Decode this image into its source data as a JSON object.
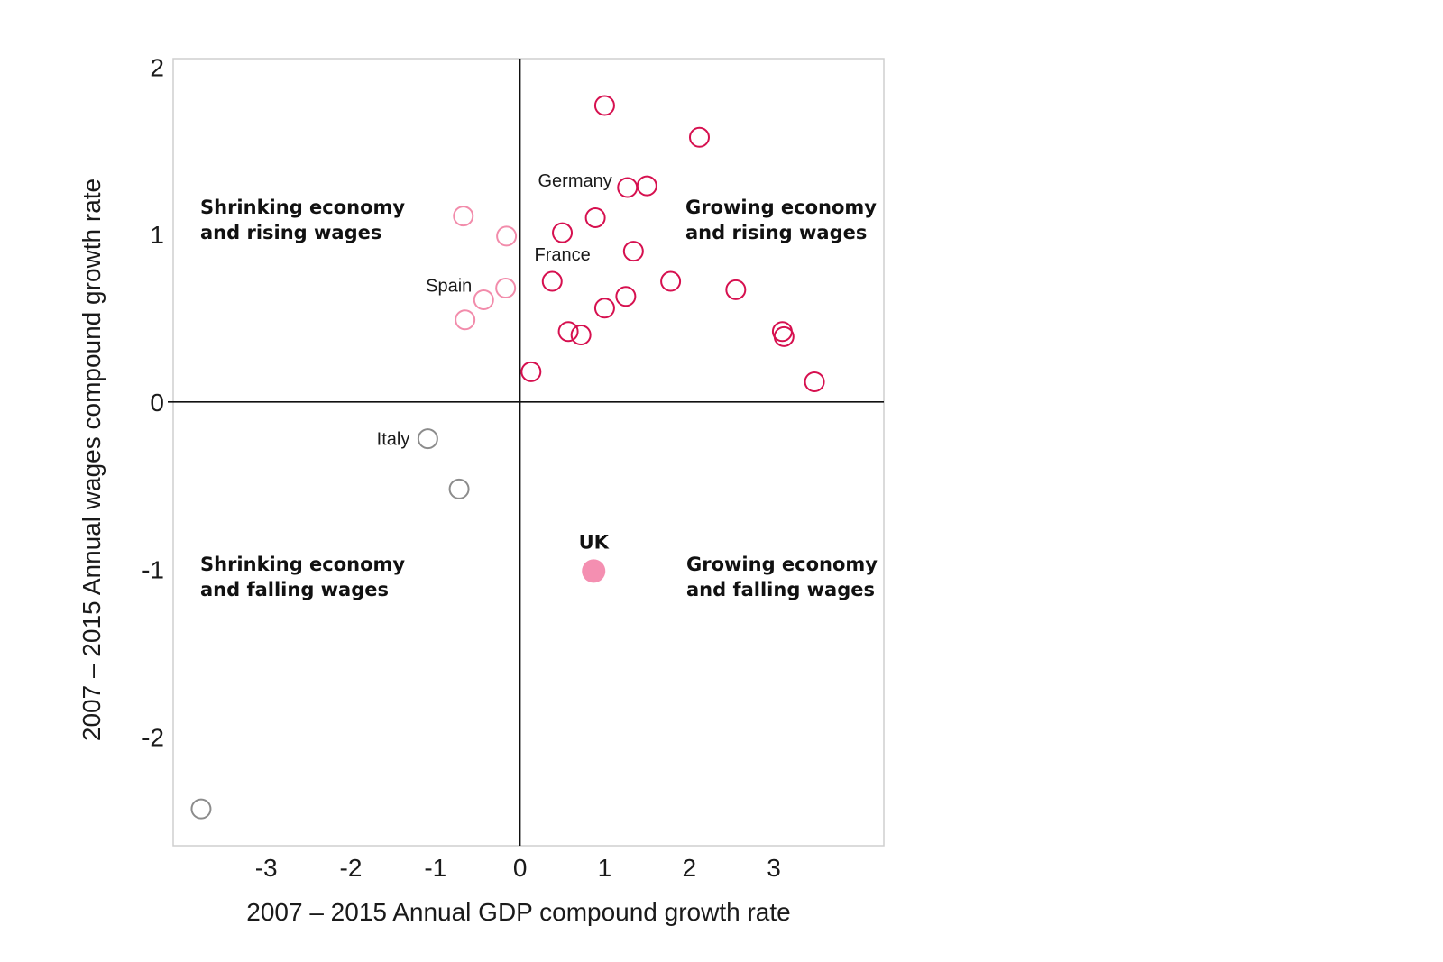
{
  "chart_data": {
    "type": "scatter",
    "xlabel": "2007 – 2015 Annual GDP compound growth rate",
    "ylabel": "2007 – 2015 Annual wages compound growth rate",
    "xlim": [
      -4.1,
      4.3
    ],
    "ylim": [
      -2.65,
      2.05
    ],
    "x_ticks": [
      -3,
      -2,
      -1,
      0,
      1,
      2,
      3
    ],
    "y_ticks": [
      2,
      1,
      0,
      -1,
      -2
    ],
    "grid": false,
    "quadrant_labels": {
      "top_left": [
        "Shrinking economy",
        "and rising wages"
      ],
      "top_right": [
        "Growing economy",
        "and rising wages"
      ],
      "bottom_left": [
        "Shrinking economy",
        "and falling wages"
      ],
      "bottom_right": [
        "Growing economy",
        "and falling wages"
      ]
    },
    "colors": {
      "growing_rising": "#d6104f",
      "shrinking_rising": "#f28cab",
      "falling": "#8c8c8c",
      "uk": "#f48fb1"
    },
    "points": [
      {
        "x": 1.0,
        "y": 1.77,
        "group": "growing_rising"
      },
      {
        "x": 2.12,
        "y": 1.58,
        "group": "growing_rising"
      },
      {
        "x": 1.27,
        "y": 1.28,
        "group": "growing_rising",
        "label": "Germany"
      },
      {
        "x": 1.5,
        "y": 1.29,
        "group": "growing_rising"
      },
      {
        "x": 0.89,
        "y": 1.1,
        "group": "growing_rising"
      },
      {
        "x": 0.5,
        "y": 1.01,
        "group": "growing_rising",
        "label": "France"
      },
      {
        "x": 1.34,
        "y": 0.9,
        "group": "growing_rising"
      },
      {
        "x": 0.38,
        "y": 0.72,
        "group": "growing_rising"
      },
      {
        "x": 1.78,
        "y": 0.72,
        "group": "growing_rising"
      },
      {
        "x": 2.55,
        "y": 0.67,
        "group": "growing_rising"
      },
      {
        "x": 1.25,
        "y": 0.63,
        "group": "growing_rising"
      },
      {
        "x": 1.0,
        "y": 0.56,
        "group": "growing_rising"
      },
      {
        "x": 0.57,
        "y": 0.42,
        "group": "growing_rising"
      },
      {
        "x": 0.72,
        "y": 0.4,
        "group": "growing_rising"
      },
      {
        "x": 3.1,
        "y": 0.42,
        "group": "growing_rising"
      },
      {
        "x": 3.12,
        "y": 0.39,
        "group": "growing_rising"
      },
      {
        "x": 0.13,
        "y": 0.18,
        "group": "growing_rising"
      },
      {
        "x": 3.48,
        "y": 0.12,
        "group": "growing_rising"
      },
      {
        "x": -0.67,
        "y": 1.11,
        "group": "shrinking_rising"
      },
      {
        "x": -0.16,
        "y": 0.99,
        "group": "shrinking_rising"
      },
      {
        "x": -0.17,
        "y": 0.68,
        "group": "shrinking_rising"
      },
      {
        "x": -0.43,
        "y": 0.61,
        "group": "shrinking_rising",
        "label": "Spain"
      },
      {
        "x": -0.65,
        "y": 0.49,
        "group": "shrinking_rising"
      },
      {
        "x": -1.09,
        "y": -0.22,
        "group": "falling",
        "label": "Italy"
      },
      {
        "x": -0.72,
        "y": -0.52,
        "group": "falling"
      },
      {
        "x": -3.77,
        "y": -2.43,
        "group": "falling"
      },
      {
        "x": 0.87,
        "y": -1.01,
        "group": "uk",
        "label": "UK"
      }
    ]
  }
}
